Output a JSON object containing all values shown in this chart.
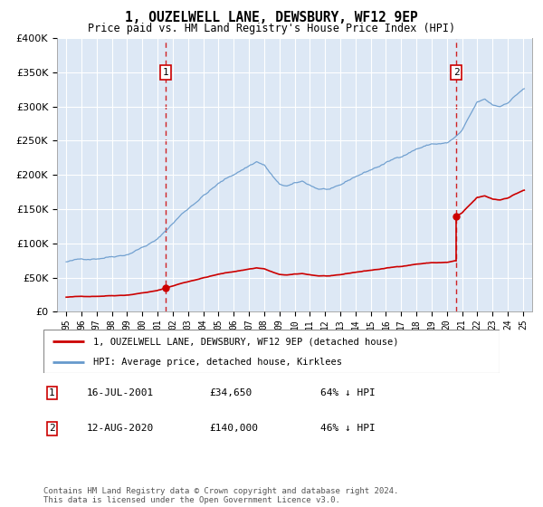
{
  "title": "1, OUZELWELL LANE, DEWSBURY, WF12 9EP",
  "subtitle": "Price paid vs. HM Land Registry's House Price Index (HPI)",
  "footer": "Contains HM Land Registry data © Crown copyright and database right 2024.\nThis data is licensed under the Open Government Licence v3.0.",
  "legend_property": "1, OUZELWELL LANE, DEWSBURY, WF12 9EP (detached house)",
  "legend_hpi": "HPI: Average price, detached house, Kirklees",
  "transaction1_date": "16-JUL-2001",
  "transaction1_price": "£34,650",
  "transaction1_hpi_text": "64% ↓ HPI",
  "transaction2_date": "12-AUG-2020",
  "transaction2_price": "£140,000",
  "transaction2_hpi_text": "46% ↓ HPI",
  "property_color": "#cc0000",
  "hpi_color": "#6699cc",
  "background_color": "#dde8f5",
  "grid_color": "#ffffff",
  "marker_box_color": "#cc0000",
  "sale1_year": 2001.54,
  "sale1_price": 34650,
  "sale2_year": 2020.62,
  "sale2_price": 140000
}
